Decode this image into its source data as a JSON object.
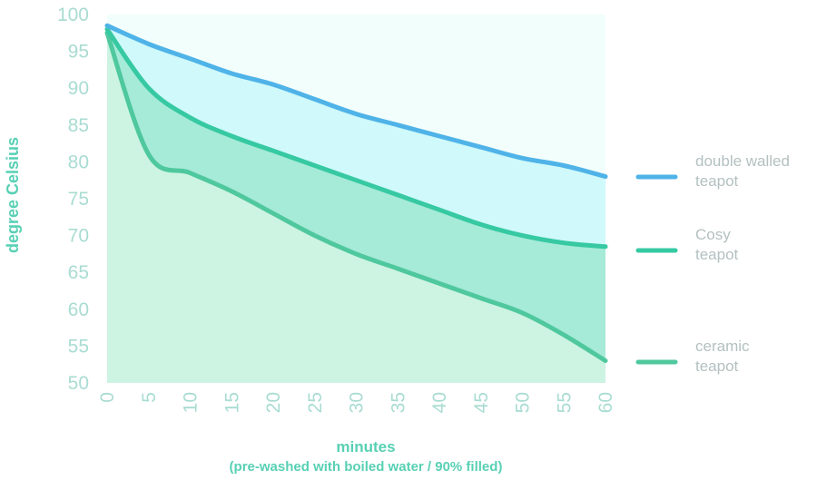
{
  "chart_data": {
    "type": "area",
    "title": "",
    "xlabel_line1": "minutes",
    "xlabel_line2": "(pre-washed with boiled water / 90% filled)",
    "ylabel": "degree Celsius",
    "xlim": [
      0,
      60
    ],
    "ylim": [
      50,
      100
    ],
    "x_ticks": [
      "0",
      "5",
      "10",
      "15",
      "20",
      "25",
      "30",
      "35",
      "40",
      "45",
      "50",
      "55",
      "60"
    ],
    "y_ticks": [
      "50",
      "55",
      "60",
      "65",
      "70",
      "75",
      "80",
      "85",
      "90",
      "95",
      "100"
    ],
    "x": [
      0,
      5,
      10,
      15,
      20,
      25,
      30,
      35,
      40,
      45,
      50,
      55,
      60
    ],
    "series": [
      {
        "name": "double walled teapot",
        "label_lines": [
          "double walled",
          "teapot"
        ],
        "line_color": "#4fb3e8",
        "fill_color": "#cff9fa",
        "values": [
          98.5,
          96.0,
          94.0,
          92.0,
          90.5,
          88.5,
          86.5,
          85.0,
          83.5,
          82.0,
          80.5,
          79.5,
          78.0
        ]
      },
      {
        "name": "Cosy teapot",
        "label_lines": [
          "Cosy",
          "teapot"
        ],
        "line_color": "#36c9a2",
        "fill_color": "#a6ead8",
        "values": [
          98.0,
          90.0,
          86.0,
          83.5,
          81.5,
          79.5,
          77.5,
          75.5,
          73.5,
          71.5,
          70.0,
          69.0,
          68.5
        ]
      },
      {
        "name": "ceramic teapot",
        "label_lines": [
          "ceramic",
          "teapot"
        ],
        "line_color": "#4fc89e",
        "fill_color": "#cdf3e3",
        "values": [
          97.5,
          81.0,
          78.5,
          76.0,
          73.0,
          70.0,
          67.5,
          65.5,
          63.5,
          61.5,
          59.5,
          56.5,
          53.0
        ]
      }
    ],
    "grid": false,
    "legend_position": "right"
  }
}
